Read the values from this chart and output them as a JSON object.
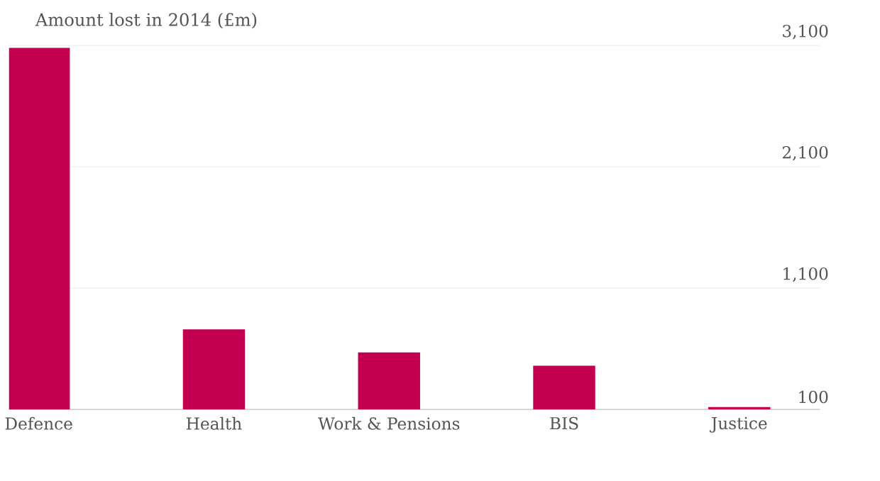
{
  "chart_data": {
    "type": "bar",
    "title": "Amount lost in 2014 (£m)",
    "categories": [
      "Defence",
      "Health",
      "Work & Pensions",
      "BIS",
      "Justice"
    ],
    "values": [
      3080,
      760,
      570,
      460,
      120
    ],
    "color": "#c2004f",
    "ylim": [
      100,
      3100
    ],
    "yticks": [
      100,
      {
        "value": 1100,
        "label": "1,100"
      },
      {
        "value": 2100,
        "label": "2,100"
      },
      {
        "value": 3100,
        "label": "3,100"
      }
    ],
    "grid": "y"
  }
}
